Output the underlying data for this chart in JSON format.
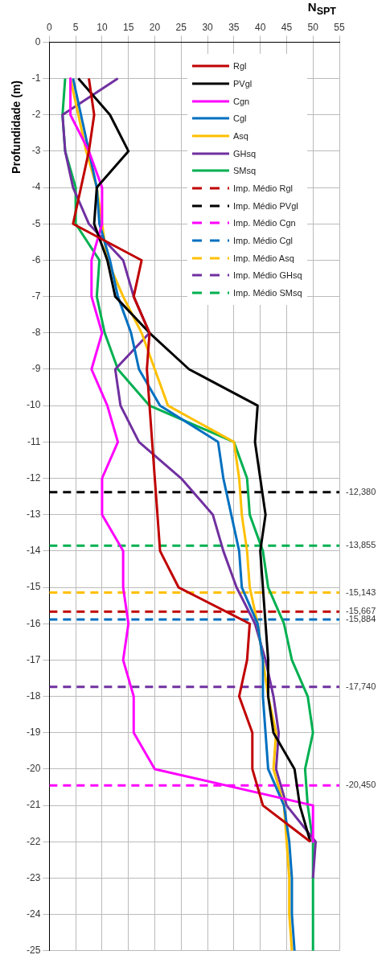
{
  "chart_data": {
    "type": "line",
    "xlabel": "N$_{SPT}$",
    "ylabel": "Profundidade (m)",
    "xlim": [
      0,
      55
    ],
    "xticks": [
      0,
      5,
      10,
      15,
      20,
      25,
      30,
      35,
      40,
      45,
      50,
      55
    ],
    "ylim": [
      -25,
      0
    ],
    "yticks": [
      0,
      -1,
      -2,
      -3,
      -4,
      -5,
      -6,
      -7,
      -8,
      -9,
      -10,
      -11,
      -12,
      -13,
      -14,
      -15,
      -16,
      -17,
      -18,
      -19,
      -20,
      -21,
      -22,
      -23,
      -24,
      -25
    ],
    "grid": true,
    "legend": "top right",
    "marker": "none",
    "line_style": "solid",
    "series": [
      {
        "name": "Rgl",
        "color": "#c00000",
        "x": [
          7.5,
          8.5,
          7.5,
          6,
          4.5,
          17.5,
          16,
          19,
          18.5,
          19,
          19.5,
          20,
          20.5,
          21,
          24.5,
          38,
          37.5,
          36,
          38.5,
          38.5,
          40.5,
          49.5
        ],
        "values": [
          -1,
          -2,
          -3,
          -4,
          -5,
          -6,
          -7,
          -8,
          -9,
          -10,
          -11,
          -12,
          -13,
          -14,
          -15,
          -16,
          -17,
          -18,
          -19,
          -20,
          -21,
          -22
        ]
      },
      {
        "name": "PVgl",
        "color": "#000000",
        "x": [
          5.5,
          11.5,
          15,
          9,
          8.5,
          11,
          12.5,
          19,
          26.5,
          39.5,
          39,
          40,
          41,
          40,
          40.5,
          41,
          41.5,
          41.5,
          42.5,
          46.5,
          47.5,
          49.5
        ],
        "values": [
          -1,
          -2,
          -3,
          -4,
          -5,
          -6,
          -7,
          -8,
          -9,
          -10,
          -11,
          -12,
          -13,
          -14,
          -15,
          -16,
          -17,
          -18,
          -19,
          -20,
          -21,
          -22
        ]
      },
      {
        "name": "Cgn",
        "color": "#ff00ff",
        "x": [
          4,
          4,
          7.5,
          10,
          10,
          8,
          8,
          10,
          8,
          11,
          13,
          10,
          10,
          14,
          14,
          15,
          14,
          16,
          16,
          20,
          50,
          50
        ],
        "values": [
          -1,
          -2,
          -3,
          -4,
          -5,
          -6,
          -7,
          -8,
          -9,
          -10,
          -11,
          -12,
          -13,
          -14,
          -15,
          -16,
          -17,
          -18,
          -19,
          -20,
          -21,
          -22
        ]
      },
      {
        "name": "Cgl",
        "color": "#0070c0",
        "x": [
          4.5,
          6,
          7.5,
          9,
          9.5,
          11.5,
          13,
          15.5,
          17,
          21,
          32,
          33,
          34.5,
          36,
          36.5,
          39.5,
          40.5,
          40.5,
          41,
          41.5,
          44.5,
          45.5,
          46,
          46,
          46.5
        ],
        "values": [
          -1,
          -2,
          -3,
          -4,
          -5,
          -6,
          -7,
          -8,
          -9,
          -10,
          -11,
          -12,
          -13,
          -14,
          -15,
          -16,
          -17,
          -18,
          -19,
          -20,
          -21,
          -22,
          -23,
          -24,
          -25
        ]
      },
      {
        "name": "Asq",
        "color": "#ffc000",
        "x": [
          4,
          5.5,
          7,
          9,
          10,
          11,
          14,
          17.5,
          20,
          22.5,
          35,
          36,
          36.5,
          37.5,
          38,
          39.5,
          40.5,
          41.5,
          43,
          42.5,
          44.5,
          45,
          45.5,
          45.5,
          46
        ],
        "values": [
          -1,
          -2,
          -3,
          -4,
          -5,
          -6,
          -7,
          -8,
          -9,
          -10,
          -11,
          -12,
          -13,
          -14,
          -15,
          -16,
          -17,
          -18,
          -19,
          -20,
          -21,
          -22,
          -23,
          -24,
          -25
        ]
      },
      {
        "name": "GHsq",
        "color": "#7030a0",
        "x": [
          13,
          2.5,
          3,
          4.5,
          7.5,
          14,
          16,
          19,
          12.5,
          13.5,
          17,
          25,
          31,
          33,
          35.5,
          39,
          41,
          42.5,
          43.5,
          43,
          45,
          50.5,
          50
        ],
        "values": [
          -1,
          -2,
          -3,
          -4,
          -5,
          -6,
          -7,
          -8,
          -9,
          -10,
          -11,
          -12,
          -13,
          -14,
          -15,
          -16,
          -17,
          -18,
          -19,
          -20,
          -21,
          -22,
          -23
        ]
      },
      {
        "name": "SMsq",
        "color": "#00b050",
        "x": [
          3,
          2.5,
          3,
          5,
          5,
          9.5,
          9,
          10.5,
          13,
          19,
          35,
          37.5,
          38,
          40.5,
          41.5,
          44.5,
          46,
          49,
          50,
          48.5,
          49,
          50,
          50
        ],
        "values": [
          -1,
          -2,
          -3,
          -4,
          -5,
          -6,
          -7,
          -8,
          -9,
          -10,
          -11,
          -12,
          -13,
          -14,
          -15,
          -16,
          -17,
          -18,
          -19,
          -20,
          -21,
          -22,
          -25
        ]
      },
      {
        "name": "Imp. Médio Rgl",
        "color": "#c00000",
        "line_style": "dashed",
        "x": [
          0,
          55
        ],
        "values": [
          -15.667,
          -15.667
        ]
      },
      {
        "name": "Imp. Médio PVgl",
        "color": "#000000",
        "line_style": "dashed",
        "x": [
          0,
          55
        ],
        "values": [
          -12.38,
          -12.38
        ]
      },
      {
        "name": "Imp. Médio Cgn",
        "color": "#ff00ff",
        "line_style": "dashed",
        "x": [
          0,
          55
        ],
        "values": [
          -20.45,
          -20.45
        ]
      },
      {
        "name": "Imp. Médio Cgl",
        "color": "#0070c0",
        "line_style": "dashed",
        "x": [
          0,
          55
        ],
        "values": [
          -15.884,
          -15.884
        ]
      },
      {
        "name": "Imp. Médio Asq",
        "color": "#ffc000",
        "line_style": "dashed",
        "x": [
          0,
          55
        ],
        "values": [
          -15.143,
          -15.143
        ]
      },
      {
        "name": "Imp. Médio GHsq",
        "color": "#7030a0",
        "line_style": "dashed",
        "x": [
          0,
          55
        ],
        "values": [
          -17.74,
          -17.74
        ]
      },
      {
        "name": "Imp. Médio SMsq",
        "color": "#00b050",
        "line_style": "dashed",
        "x": [
          0,
          55
        ],
        "values": [
          -13.855,
          -13.855
        ]
      }
    ],
    "annotations": [
      "-12,380",
      "-13,855",
      "-15,143",
      "-15,667",
      "-15,884",
      "-17,740",
      "-20,450"
    ]
  }
}
